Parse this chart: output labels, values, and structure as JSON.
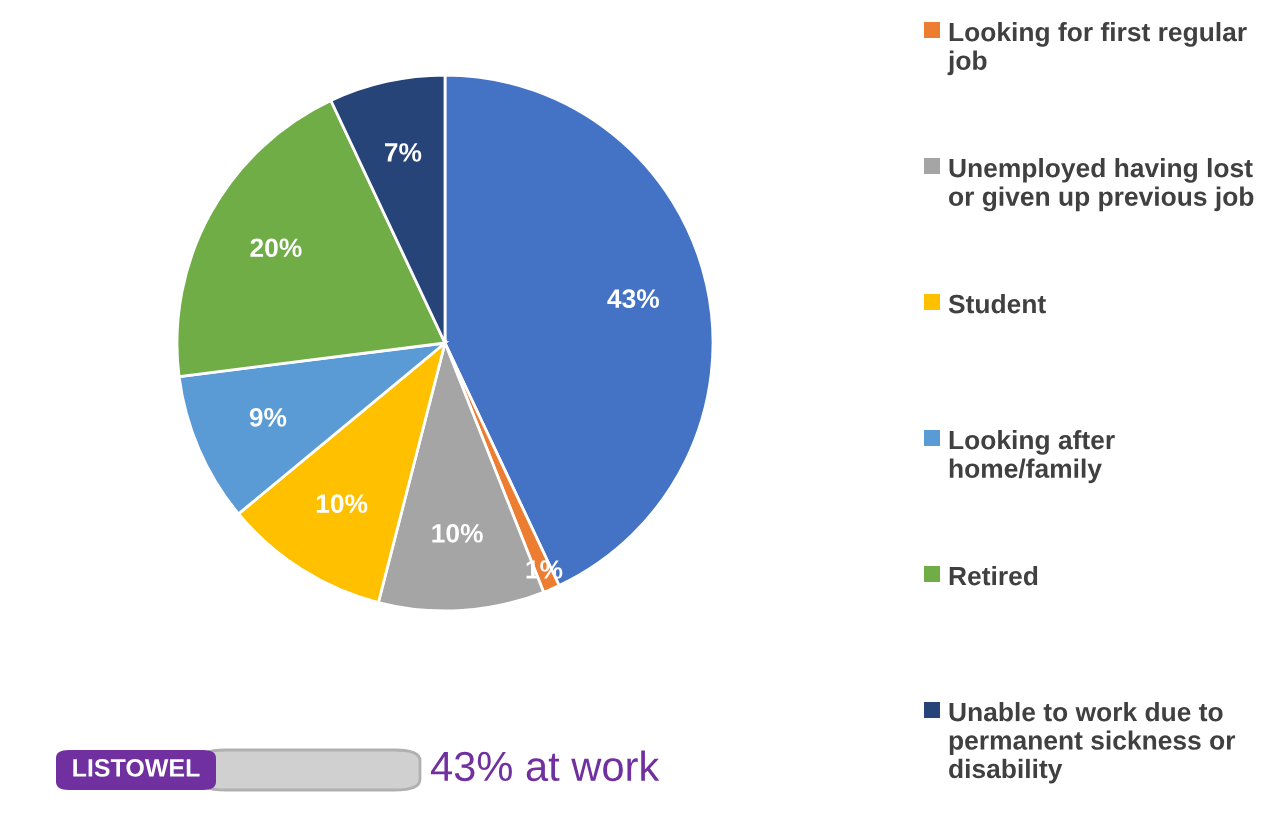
{
  "chart_data": {
    "type": "pie",
    "categories": [
      null,
      "Looking for first regular job",
      "Unemployed having lost or given up previous job",
      "Student",
      "Looking after home/family",
      "Retired",
      "Unable to work due to permanent sickness or disability"
    ],
    "values": [
      43,
      1,
      10,
      10,
      9,
      20,
      7
    ],
    "value_labels": [
      "43%",
      "1%",
      "10%",
      "10%",
      "9%",
      "20%",
      "7%"
    ],
    "colors": [
      "#4472c4",
      "#ed7d31",
      "#a5a5a5",
      "#ffc000",
      "#5b9bd5",
      "#70ad47",
      "#264478"
    ],
    "legend": "right",
    "annotations": [
      "LISTOWEL",
      "43% at work"
    ]
  }
}
